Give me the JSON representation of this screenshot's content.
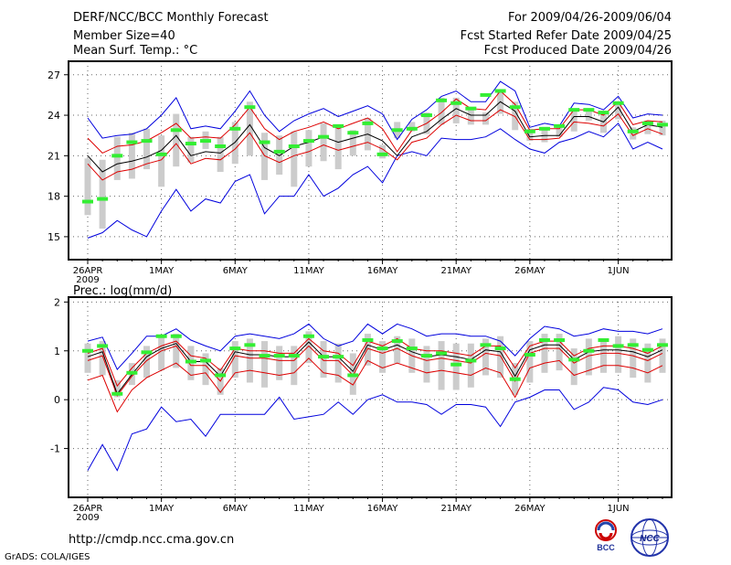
{
  "header": {
    "title": "DERF/NCC/BCC Monthly Forecast",
    "member": "Member Size=40",
    "variable": "Mean Surf. Temp.: °C",
    "period": "For 2009/04/26-2009/06/04",
    "started": "Fcst Started Refer Date 2009/04/25",
    "produced": "Fcst Produced Date 2009/04/26"
  },
  "footer": {
    "url": "http://cmdp.ncc.cma.gov.cn",
    "credit": "GrADS: COLA/IGES",
    "logo_bcc": "BCC",
    "logo_ncc": "NCC"
  },
  "colors": {
    "envelope": "#0000dd",
    "spread": "#dd0000",
    "mean": "#000000",
    "median": "#33ee33",
    "box": "#cccccc"
  },
  "chart_data": [
    {
      "type": "line",
      "title": "Mean Surf. Temp.: °C",
      "ylabel": "Mean Surf. Temp.: °C",
      "ylim": [
        13.3,
        28
      ],
      "yticks": [
        15,
        18,
        21,
        24,
        27
      ],
      "xticks": [
        {
          "day": 1,
          "label": "26APR",
          "sublabel": "2009"
        },
        {
          "day": 6,
          "label": "1MAY"
        },
        {
          "day": 11,
          "label": "6MAY"
        },
        {
          "day": 16,
          "label": "11MAY"
        },
        {
          "day": 21,
          "label": "16MAY"
        },
        {
          "day": 26,
          "label": "21MAY"
        },
        {
          "day": 31,
          "label": "26MAY"
        },
        {
          "day": 37,
          "label": "1JUN"
        }
      ],
      "days": 40,
      "series": [
        {
          "name": "max",
          "values": [
            23.8,
            22.3,
            22.5,
            22.6,
            23.0,
            24.0,
            25.3,
            23.0,
            23.2,
            23.0,
            24.3,
            25.8,
            24.0,
            22.8,
            23.6,
            24.1,
            24.5,
            23.9,
            24.3,
            24.7,
            24.1,
            22.2,
            23.7,
            24.4,
            25.4,
            25.8,
            25.0,
            25.0,
            26.5,
            25.8,
            23.1,
            23.4,
            23.2,
            24.9,
            24.8,
            24.4,
            25.4,
            23.8,
            24.1,
            24.0
          ]
        },
        {
          "name": "upper",
          "values": [
            22.3,
            21.2,
            21.7,
            21.8,
            22.1,
            22.7,
            23.4,
            22.3,
            22.4,
            22.3,
            23.3,
            24.6,
            23.0,
            22.2,
            22.8,
            23.1,
            23.5,
            23.0,
            23.4,
            23.8,
            23.0,
            21.3,
            22.9,
            23.4,
            24.2,
            25.2,
            24.5,
            24.4,
            25.8,
            24.8,
            22.9,
            23.0,
            23.0,
            24.4,
            24.4,
            24.0,
            25.0,
            23.3,
            23.6,
            23.5
          ]
        },
        {
          "name": "mean",
          "values": [
            21.0,
            19.8,
            20.4,
            20.6,
            20.9,
            21.4,
            22.5,
            21.0,
            21.3,
            21.2,
            22.0,
            23.3,
            21.6,
            21.0,
            21.7,
            22.0,
            22.4,
            22.0,
            22.3,
            22.6,
            22.1,
            21.0,
            22.4,
            22.8,
            23.7,
            24.5,
            24.0,
            24.0,
            25.0,
            24.3,
            22.4,
            22.5,
            22.5,
            23.9,
            23.9,
            23.5,
            24.6,
            22.8,
            23.3,
            23.1
          ]
        },
        {
          "name": "lower",
          "values": [
            20.4,
            19.2,
            19.8,
            20.0,
            20.4,
            20.7,
            21.9,
            20.4,
            20.8,
            20.7,
            21.5,
            22.7,
            21.0,
            20.5,
            21.0,
            21.3,
            21.8,
            21.4,
            21.7,
            22.0,
            21.5,
            20.7,
            22.0,
            22.3,
            23.3,
            24.0,
            23.6,
            23.6,
            24.4,
            23.9,
            22.2,
            22.2,
            22.3,
            23.5,
            23.4,
            23.2,
            24.1,
            22.5,
            23.0,
            22.6
          ]
        },
        {
          "name": "min",
          "values": [
            14.9,
            15.3,
            16.2,
            15.5,
            15.0,
            16.9,
            18.5,
            16.9,
            17.8,
            17.5,
            19.1,
            19.6,
            16.7,
            18.0,
            18.0,
            19.6,
            18.0,
            18.6,
            19.6,
            20.2,
            19.0,
            21.0,
            21.3,
            21.0,
            22.3,
            22.2,
            22.2,
            22.4,
            23.0,
            22.2,
            21.5,
            21.2,
            22.0,
            22.3,
            22.8,
            22.4,
            23.4,
            21.5,
            22.0,
            21.5
          ]
        },
        {
          "name": "median",
          "values": [
            17.6,
            17.8,
            21.0,
            22.0,
            22.1,
            21.1,
            22.9,
            21.9,
            22.1,
            21.7,
            23.0,
            24.6,
            22.0,
            21.3,
            21.7,
            22.1,
            22.4,
            23.2,
            22.7,
            23.4,
            21.1,
            22.9,
            23.0,
            24.0,
            25.1,
            24.9,
            24.5,
            25.5,
            25.8,
            24.6,
            22.8,
            23.0,
            23.2,
            24.4,
            24.4,
            24.2,
            24.9,
            22.8,
            23.4,
            23.3
          ]
        },
        {
          "name": "box_high",
          "values": [
            20.8,
            20.7,
            22.4,
            22.7,
            23.0,
            22.5,
            24.1,
            22.4,
            22.8,
            22.4,
            23.5,
            25.0,
            22.7,
            22.5,
            22.8,
            22.9,
            23.4,
            23.3,
            22.9,
            23.8,
            21.8,
            23.5,
            23.5,
            24.2,
            25.3,
            25.3,
            24.4,
            24.2,
            25.9,
            25.0,
            23.0,
            23.0,
            23.3,
            24.3,
            24.5,
            24.2,
            25.0,
            23.1,
            23.6,
            23.6
          ]
        },
        {
          "name": "box_low",
          "values": [
            16.6,
            15.6,
            19.2,
            19.3,
            20.0,
            18.7,
            20.2,
            20.5,
            21.5,
            19.8,
            20.4,
            21.0,
            19.2,
            19.6,
            18.7,
            20.2,
            20.6,
            20.0,
            21.0,
            21.4,
            20.8,
            22.3,
            22.8,
            22.6,
            23.3,
            23.4,
            23.3,
            23.3,
            24.1,
            22.9,
            22.1,
            22.0,
            22.4,
            22.8,
            23.6,
            22.7,
            23.7,
            22.2,
            22.6,
            22.5
          ]
        }
      ]
    },
    {
      "type": "line",
      "title": "Prec.: log(mm/d)",
      "ylabel": "Prec.: log(mm/d)",
      "ylim": [
        -2,
        2.1
      ],
      "yticks": [
        -1,
        0,
        1,
        2
      ],
      "xticks": [
        {
          "day": 1,
          "label": "26APR",
          "sublabel": "2009"
        },
        {
          "day": 6,
          "label": "1MAY"
        },
        {
          "day": 11,
          "label": "6MAY"
        },
        {
          "day": 16,
          "label": "11MAY"
        },
        {
          "day": 21,
          "label": "16MAY"
        },
        {
          "day": 26,
          "label": "21MAY"
        },
        {
          "day": 31,
          "label": "26MAY"
        },
        {
          "day": 37,
          "label": "1JUN"
        }
      ],
      "days": 40,
      "series": [
        {
          "name": "max",
          "values": [
            1.2,
            1.28,
            0.62,
            0.95,
            1.3,
            1.3,
            1.45,
            1.22,
            1.1,
            1.0,
            1.3,
            1.35,
            1.3,
            1.25,
            1.35,
            1.55,
            1.25,
            1.1,
            1.2,
            1.55,
            1.35,
            1.55,
            1.45,
            1.3,
            1.35,
            1.35,
            1.3,
            1.3,
            1.2,
            0.9,
            1.25,
            1.5,
            1.45,
            1.3,
            1.35,
            1.45,
            1.4,
            1.4,
            1.35,
            1.45
          ]
        },
        {
          "name": "upper",
          "values": [
            0.95,
            1.05,
            0.28,
            0.65,
            0.95,
            1.1,
            1.2,
            0.9,
            0.85,
            0.6,
            1.05,
            1.0,
            1.0,
            0.95,
            0.95,
            1.25,
            1.0,
            0.95,
            0.7,
            1.2,
            1.1,
            1.25,
            1.05,
            1.0,
            1.0,
            0.95,
            0.9,
            1.1,
            1.1,
            0.65,
            1.1,
            1.2,
            1.2,
            0.9,
            1.05,
            1.1,
            1.1,
            1.05,
            0.95,
            1.1
          ]
        },
        {
          "name": "mean",
          "values": [
            0.88,
            0.98,
            0.12,
            0.52,
            0.88,
            1.05,
            1.15,
            0.78,
            0.78,
            0.48,
            0.98,
            0.92,
            0.92,
            0.88,
            0.88,
            1.18,
            0.88,
            0.88,
            0.58,
            1.12,
            1.02,
            1.12,
            0.98,
            0.88,
            0.92,
            0.88,
            0.82,
            1.02,
            0.98,
            0.48,
            1.02,
            1.12,
            1.12,
            0.82,
            0.98,
            1.02,
            1.02,
            0.98,
            0.88,
            1.02
          ]
        },
        {
          "name": "lower",
          "values": [
            0.8,
            0.9,
            0.08,
            0.48,
            0.8,
            1.0,
            1.1,
            0.7,
            0.7,
            0.38,
            0.9,
            0.85,
            0.85,
            0.8,
            0.8,
            1.1,
            0.8,
            0.8,
            0.5,
            1.05,
            0.95,
            1.05,
            0.9,
            0.8,
            0.85,
            0.8,
            0.75,
            0.95,
            0.9,
            0.38,
            0.95,
            1.05,
            1.05,
            0.75,
            0.9,
            0.95,
            0.95,
            0.9,
            0.8,
            0.95
          ]
        },
        {
          "name": "low",
          "values": [
            0.4,
            0.5,
            -0.25,
            0.2,
            0.45,
            0.6,
            0.75,
            0.5,
            0.55,
            0.15,
            0.55,
            0.6,
            0.55,
            0.5,
            0.55,
            0.85,
            0.55,
            0.5,
            0.3,
            0.8,
            0.65,
            0.75,
            0.65,
            0.55,
            0.6,
            0.55,
            0.5,
            0.65,
            0.55,
            0.05,
            0.65,
            0.75,
            0.8,
            0.5,
            0.6,
            0.7,
            0.7,
            0.65,
            0.55,
            0.7
          ]
        },
        {
          "name": "min",
          "values": [
            -1.45,
            -0.92,
            -1.45,
            -0.7,
            -0.6,
            -0.15,
            -0.45,
            -0.4,
            -0.75,
            -0.3,
            -0.3,
            -0.3,
            -0.3,
            0.05,
            -0.4,
            -0.35,
            -0.3,
            -0.05,
            -0.3,
            0.0,
            0.1,
            -0.05,
            -0.05,
            -0.1,
            -0.3,
            -0.1,
            -0.1,
            -0.15,
            -0.55,
            -0.05,
            0.05,
            0.2,
            0.2,
            -0.2,
            -0.05,
            0.25,
            0.2,
            -0.05,
            -0.1,
            0.0
          ]
        },
        {
          "name": "median",
          "values": [
            1.0,
            1.1,
            0.12,
            0.55,
            0.97,
            1.3,
            1.3,
            0.78,
            0.8,
            0.5,
            1.05,
            1.12,
            0.9,
            0.9,
            0.9,
            1.3,
            0.88,
            0.88,
            0.5,
            1.22,
            1.05,
            1.2,
            1.05,
            0.9,
            0.95,
            0.72,
            0.8,
            1.12,
            1.05,
            0.42,
            0.92,
            1.22,
            1.22,
            0.82,
            1.0,
            1.22,
            1.1,
            1.12,
            1.02,
            1.12
          ]
        },
        {
          "name": "box_high",
          "values": [
            1.15,
            1.2,
            0.4,
            0.75,
            1.1,
            1.3,
            1.35,
            1.1,
            0.95,
            0.65,
            1.2,
            1.25,
            1.2,
            1.1,
            1.1,
            1.4,
            1.2,
            1.15,
            0.95,
            1.35,
            1.2,
            1.3,
            1.25,
            1.1,
            1.2,
            1.15,
            1.15,
            1.25,
            1.3,
            0.75,
            1.2,
            1.35,
            1.35,
            1.05,
            1.25,
            1.25,
            1.3,
            1.25,
            1.15,
            1.25
          ]
        },
        {
          "name": "box_low",
          "values": [
            0.55,
            0.5,
            0.05,
            0.3,
            0.45,
            0.6,
            0.65,
            0.4,
            0.3,
            0.1,
            0.45,
            0.35,
            0.25,
            0.4,
            0.3,
            0.75,
            0.45,
            0.35,
            0.1,
            0.7,
            0.55,
            0.75,
            0.55,
            0.35,
            0.2,
            0.2,
            0.25,
            0.5,
            0.45,
            0.1,
            0.35,
            0.55,
            0.6,
            0.3,
            0.5,
            0.55,
            0.55,
            0.45,
            0.35,
            0.55
          ]
        }
      ]
    }
  ]
}
